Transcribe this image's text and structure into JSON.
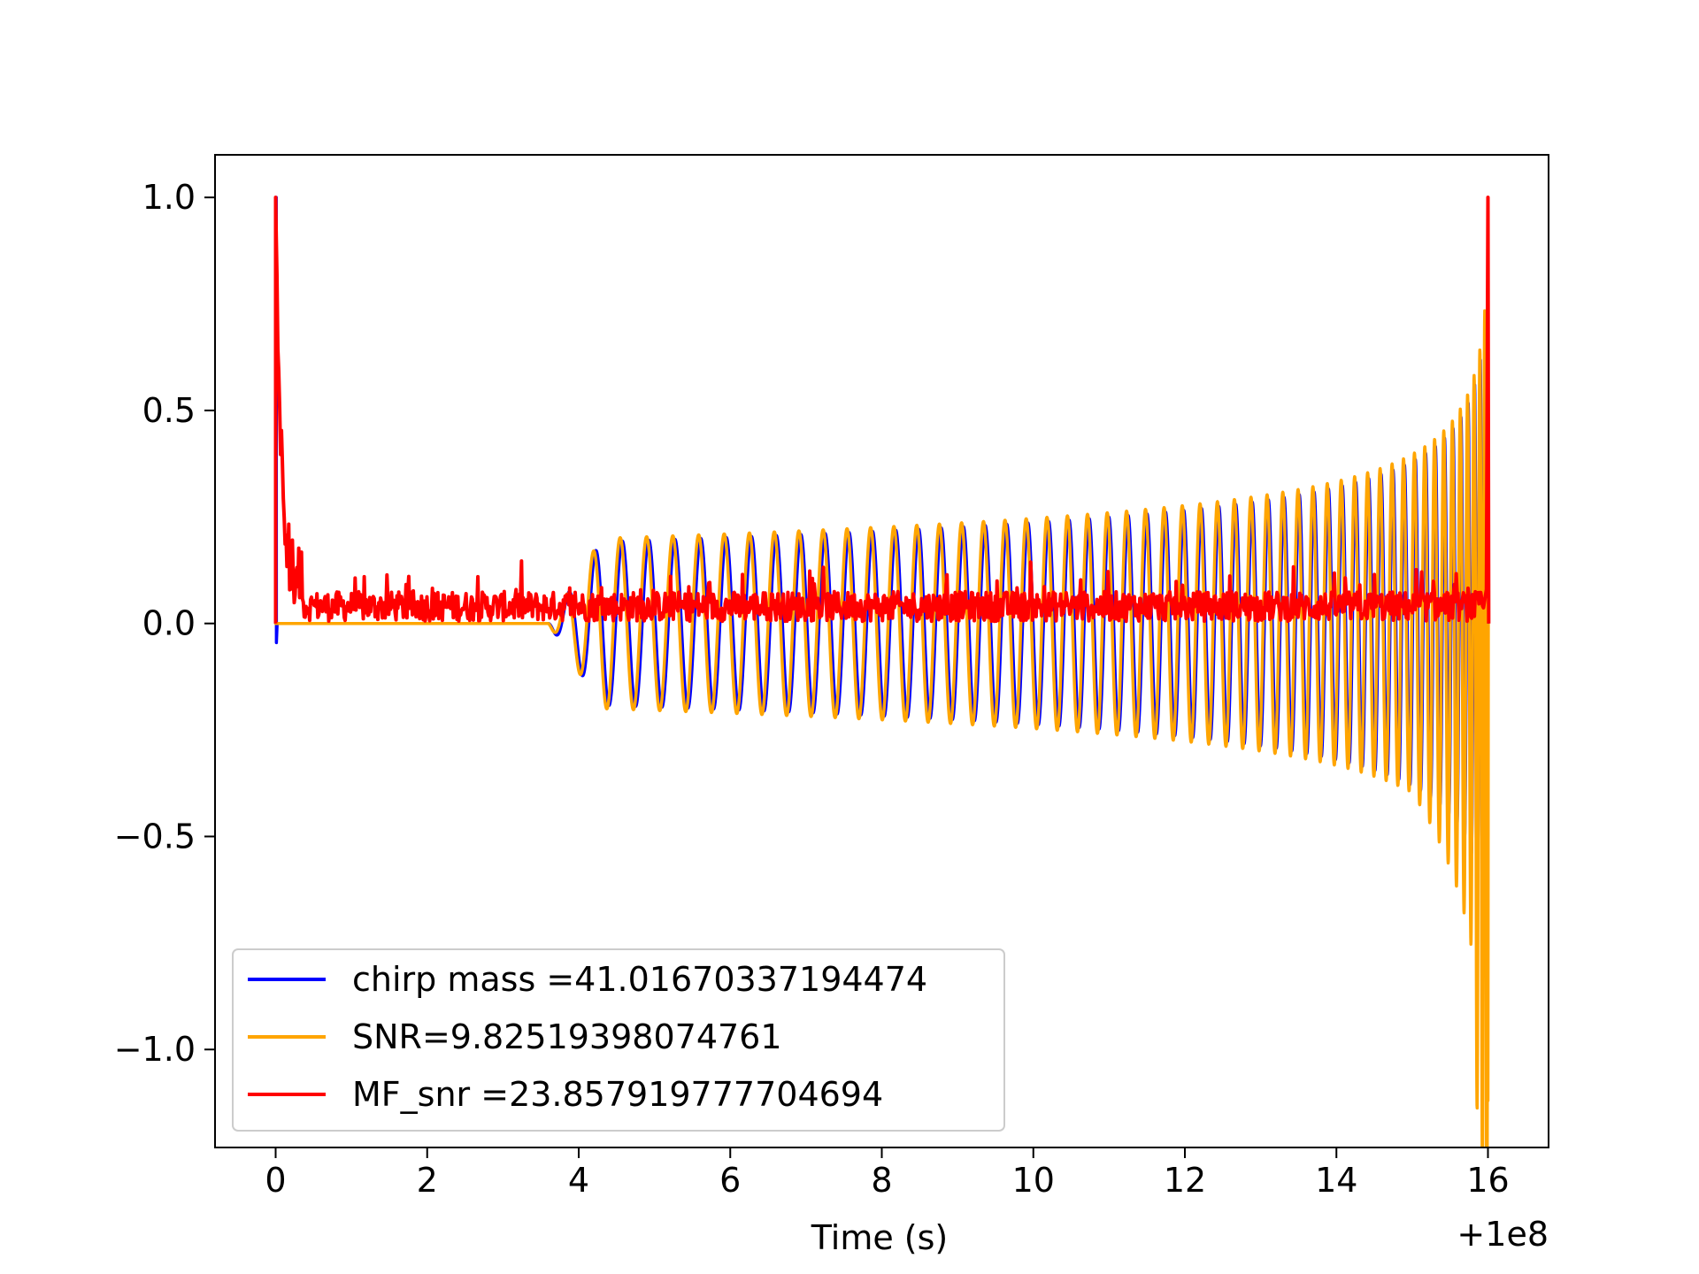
{
  "chart_data": {
    "type": "line",
    "title": "",
    "xlabel": "Time (s)",
    "ylabel": "",
    "x_offset_label": "+1e8",
    "xlim": [
      -0.8,
      16.8
    ],
    "ylim": [
      -1.23,
      1.1
    ],
    "xticks": [
      0,
      2,
      4,
      6,
      8,
      10,
      12,
      14,
      16
    ],
    "xtick_labels": [
      "0",
      "2",
      "4",
      "6",
      "8",
      "10",
      "12",
      "14",
      "16"
    ],
    "yticks": [
      1.0,
      0.5,
      0.0,
      -0.5,
      -1.0
    ],
    "ytick_labels": [
      "1.0",
      "0.5",
      "0.0",
      "−0.5",
      "−1.0"
    ],
    "grid": false,
    "legend_position": "lower-left",
    "series": [
      {
        "name": "chirp mass =41.01670337194474",
        "color": "#0000ff",
        "description": "oscillating chirp waveform; spike to 1.0 at t=0, dip to -0.04, near zero until ~3.6 s, then oscillation with envelope ~0.19 from 4.3 s growing to ~0.8 at 16 s",
        "points": [
          [
            0.0,
            0.0
          ],
          [
            0.0,
            1.0
          ],
          [
            0.01,
            -0.04
          ],
          [
            0.02,
            0.0
          ],
          [
            3.6,
            0.0
          ],
          [
            4.3,
            0.19
          ],
          [
            8.0,
            0.2
          ],
          [
            12.0,
            0.27
          ],
          [
            14.0,
            0.32
          ],
          [
            15.0,
            0.4
          ],
          [
            15.8,
            0.75
          ],
          [
            16.0,
            0.8
          ]
        ]
      },
      {
        "name": "SNR=9.82519398074761",
        "color": "#ffa500",
        "description": "chirp waveform, zero until ~3.6 s, envelope ~0.2 at 4.3 s growing to ~0.3 at 14 s, peaking +0.8 / -1.12 at 16 s",
        "points": [
          [
            0.0,
            0.0
          ],
          [
            3.6,
            0.0
          ],
          [
            4.3,
            0.2
          ],
          [
            8.0,
            0.21
          ],
          [
            12.0,
            0.27
          ],
          [
            14.0,
            0.32
          ],
          [
            15.0,
            0.4
          ],
          [
            15.8,
            0.75
          ],
          [
            16.0,
            -1.12
          ]
        ]
      },
      {
        "name": "MF_snr =23.857919777704694",
        "color": "#ff0000",
        "description": "matched-filter output; peak 1.0 at t=0 decaying to noisy ~0.04 baseline (0 to 0.15), then peak 1.0 at t=16",
        "points": [
          [
            0.0,
            1.0
          ],
          [
            0.1,
            0.4
          ],
          [
            0.3,
            0.12
          ],
          [
            1.0,
            0.06
          ],
          [
            4.0,
            0.05
          ],
          [
            8.0,
            0.05
          ],
          [
            12.0,
            0.05
          ],
          [
            15.9,
            0.07
          ],
          [
            16.0,
            1.0
          ]
        ]
      }
    ]
  }
}
